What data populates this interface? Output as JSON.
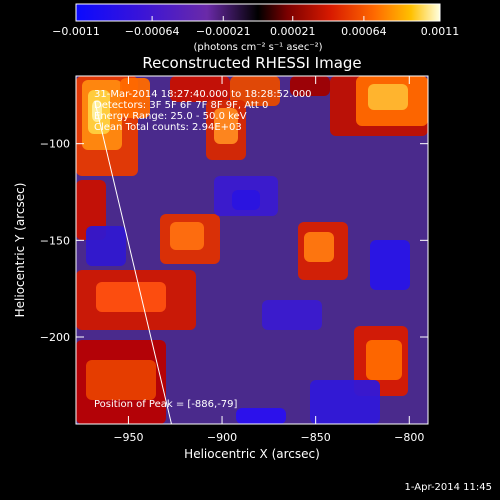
{
  "chart_data": {
    "type": "heatmap",
    "title": "Reconstructed RHESSI Image",
    "xlabel": "Heliocentric X (arcsec)",
    "ylabel": "Heliocentric Y (arcsec)",
    "xlim": [
      -978,
      -790
    ],
    "ylim": [
      -245,
      -65
    ],
    "x_ticks": [
      -950,
      -900,
      -850,
      -800
    ],
    "x_tick_labels": [
      "−950",
      "−900",
      "−850",
      "−800"
    ],
    "y_ticks": [
      -100,
      -150,
      -200
    ],
    "y_tick_labels": [
      "−100",
      "−150",
      "−200"
    ],
    "colorbar": {
      "range": [
        -0.0011,
        0.0011
      ],
      "ticks": [
        -0.0011,
        -0.00064,
        -0.00021,
        0.00021,
        0.00064,
        0.0011
      ],
      "tick_labels": [
        "−0.0011",
        "−0.00064",
        "−0.00021",
        "0.00021",
        "0.00064",
        "0.0011"
      ],
      "unit_label": "(photons cm⁻² s⁻¹ asec⁻²)"
    },
    "annotations": [
      "31-Mar-2014 18:27:40.000 to 18:28:52.000",
      "Detectors: 3F 5F 6F 7F 8F 9F, Att 0",
      "Energy Range: 25.0 - 50.0 keV",
      "Clean    Total counts: 2.94E+03",
      "Position of Peak = [-886,-79]"
    ],
    "limb_line": {
      "x": [
        -968,
        -927
      ],
      "y": [
        -78,
        -245
      ]
    },
    "peak": {
      "x": -886,
      "y": -79
    },
    "timestamp": "1-Apr-2014 11:45"
  }
}
